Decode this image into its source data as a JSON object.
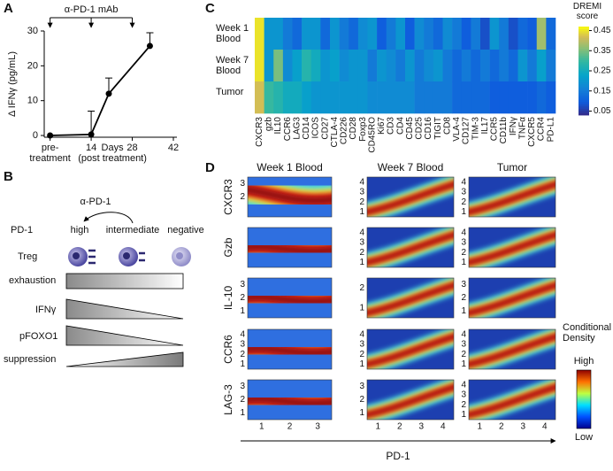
{
  "panel_labels": [
    "A",
    "B",
    "C",
    "D"
  ],
  "chart_data": [
    {
      "type": "line",
      "ylabel": "Δ IFNγ (pg/mL)",
      "xlabel": "Days\n(post treatment)",
      "annotation": "α-PD-1 mAb",
      "x": [
        0,
        14,
        20,
        34
      ],
      "series": [
        {
          "color": "#000000",
          "values": [
            0,
            0.3,
            12,
            25.7
          ],
          "errors": [
            null,
            6.7,
            4.5,
            3.8
          ]
        }
      ],
      "xlim": [
        -2,
        42
      ],
      "xticks": [
        {
          "value": 0,
          "label": "pre-\ntreatment"
        },
        14,
        28,
        42
      ],
      "ylim": [
        -0.5,
        30
      ],
      "yticks": [
        0,
        10,
        20,
        30
      ]
    },
    {
      "type": "heatmap",
      "colorbar_label": "DREMI\nscore",
      "rows": [
        "Week 1\nBlood",
        "Week 7\nBlood",
        "Tumor"
      ],
      "categories": [
        "CXCR3",
        "gzb",
        "IL10",
        "CCR6",
        "LAG3",
        "CD14",
        "ICOS",
        "CD27",
        "CTLA-4",
        "CD226",
        "CD28",
        "Foxp3",
        "CD45RO",
        "Ki67",
        "CD3",
        "CD4",
        "CD45",
        "CD25",
        "CD16",
        "TIGIT",
        "CD8",
        "VLA-4",
        "CD127",
        "TIM-3",
        "IL17",
        "CCR5",
        "CD11b",
        "IFNγ",
        "TNFα",
        "CXCR5",
        "CCR4",
        "PD-L1"
      ],
      "values": [
        [
          0.45,
          0.2,
          0.2,
          0.15,
          0.12,
          0.2,
          0.2,
          0.12,
          0.2,
          0.15,
          0.12,
          0.18,
          0.2,
          0.1,
          0.15,
          0.2,
          0.1,
          0.18,
          0.15,
          0.12,
          0.18,
          0.15,
          0.1,
          0.15,
          0.08,
          0.2,
          0.15,
          0.08,
          0.12,
          0.1,
          0.38,
          0.12
        ],
        [
          0.45,
          0.2,
          0.35,
          0.18,
          0.22,
          0.28,
          0.25,
          0.2,
          0.22,
          0.18,
          0.2,
          0.2,
          0.15,
          0.2,
          0.18,
          0.15,
          0.2,
          0.15,
          0.18,
          0.2,
          0.15,
          0.12,
          0.15,
          0.12,
          0.15,
          0.12,
          0.15,
          0.12,
          0.2,
          0.15,
          0.22,
          0.15
        ],
        [
          0.42,
          0.3,
          0.28,
          0.25,
          0.25,
          0.22,
          0.2,
          0.2,
          0.2,
          0.2,
          0.2,
          0.2,
          0.18,
          0.18,
          0.18,
          0.18,
          0.18,
          0.15,
          0.15,
          0.15,
          0.15,
          0.12,
          0.12,
          0.12,
          0.12,
          0.1,
          0.1,
          0.1,
          0.1,
          0.1,
          0.12,
          0.1
        ]
      ],
      "zlim": [
        0.03,
        0.47
      ],
      "zticks": [
        0.45,
        0.35,
        0.25,
        0.15,
        0.05
      ]
    }
  ],
  "diagram": {
    "treatment": "α-PD-1",
    "row_label": "PD-1",
    "states": [
      "high",
      "intermediate",
      "negative"
    ],
    "cell_label": "Treg",
    "bars": [
      "exhaustion",
      "IFNγ",
      "pFOXO1",
      "suppression"
    ]
  },
  "density_panel": {
    "columns": [
      "Week 1 Blood",
      "Week 7 Blood",
      "Tumor"
    ],
    "rows": [
      "CXCR3",
      "Gzb",
      "IL-10",
      "CCR6",
      "LAG-3"
    ],
    "yticks": [
      [
        [
          2,
          3
        ],
        [
          1,
          2,
          3,
          4
        ],
        [
          1,
          2,
          3,
          4
        ]
      ],
      [
        [],
        [
          1,
          2,
          3,
          4
        ],
        [
          1,
          2,
          3,
          4
        ]
      ],
      [
        [
          1,
          2,
          3
        ],
        [
          1,
          2
        ],
        [
          1,
          2,
          3
        ]
      ],
      [
        [
          1,
          2,
          3,
          4
        ],
        [
          1,
          2,
          3,
          4
        ],
        [
          1,
          2,
          3,
          4
        ]
      ],
      [
        [
          1,
          2,
          3
        ],
        [
          1,
          2,
          3
        ],
        [
          1,
          2,
          3,
          4
        ]
      ]
    ],
    "xticks": [
      [
        1,
        2,
        3
      ],
      [
        1,
        2,
        3,
        4
      ],
      [
        1,
        2,
        3,
        4
      ]
    ],
    "xlabel": "PD-1",
    "colorbar_label": "Conditional\nDensity",
    "colorbar_high": "High",
    "colorbar_low": "Low"
  }
}
